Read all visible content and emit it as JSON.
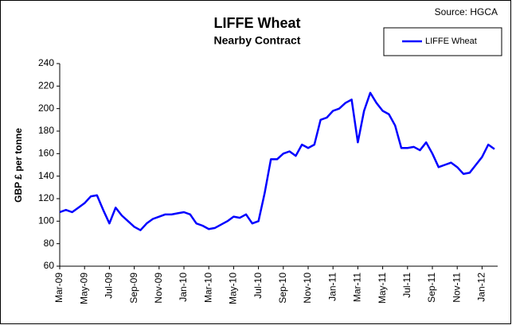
{
  "chart_data": {
    "type": "line",
    "title": "LIFFE Wheat",
    "subtitle": "Nearby Contract",
    "source": "Source: HGCA",
    "y_label": "GBP £ per tonne",
    "categories": [
      "Mar-09",
      null,
      null,
      null,
      "May-09",
      null,
      null,
      null,
      "Jul-09",
      null,
      null,
      null,
      "Sep-09",
      null,
      null,
      null,
      "Nov-09",
      null,
      null,
      null,
      "Jan-10",
      null,
      null,
      null,
      "Mar-10",
      null,
      null,
      null,
      "May-10",
      null,
      null,
      null,
      "Jul-10",
      null,
      null,
      null,
      "Sep-10",
      null,
      null,
      null,
      "Nov-10",
      null,
      null,
      null,
      "Jan-11",
      null,
      null,
      null,
      "Mar-11",
      null,
      null,
      null,
      "May-11",
      null,
      null,
      null,
      "Jul-11",
      null,
      null,
      null,
      "Sep-11",
      null,
      null,
      null,
      "Nov-11",
      null,
      null,
      null,
      "Jan-12",
      null,
      null
    ],
    "series": [
      {
        "name": "LIFFE Wheat",
        "color": "#0000ff",
        "values": [
          108,
          110,
          108,
          112,
          116,
          122,
          123,
          110,
          98,
          112,
          105,
          100,
          95,
          92,
          98,
          102,
          104,
          106,
          106,
          107,
          108,
          106,
          98,
          96,
          93,
          94,
          97,
          100,
          104,
          103,
          106,
          98,
          100,
          125,
          155,
          155,
          160,
          162,
          158,
          168,
          165,
          168,
          190,
          192,
          198,
          200,
          205,
          208,
          170,
          198,
          214,
          205,
          198,
          195,
          185,
          165,
          165,
          166,
          163,
          170,
          160,
          148,
          150,
          152,
          148,
          142,
          143,
          150,
          157,
          168,
          164
        ]
      }
    ],
    "ylim": [
      60,
      240
    ],
    "yticks": [
      60,
      80,
      100,
      120,
      140,
      160,
      180,
      200,
      220,
      240
    ],
    "legend": "top-right"
  }
}
